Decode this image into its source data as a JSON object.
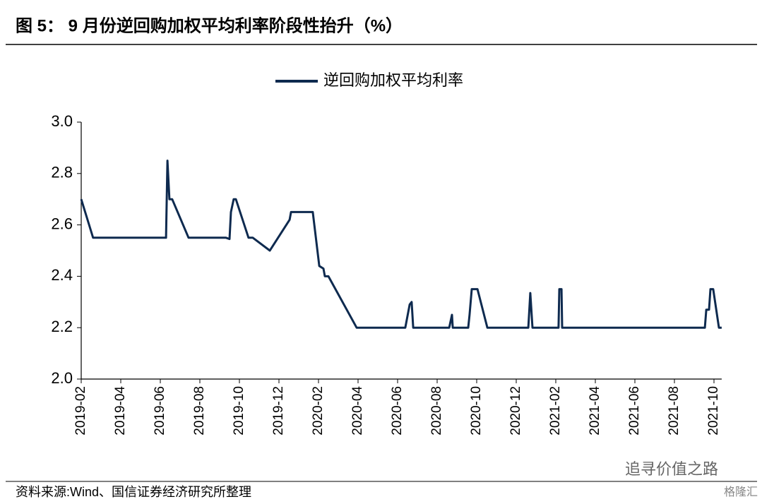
{
  "chart_data": {
    "type": "line",
    "title": "图 5： 9 月份逆回购加权平均利率阶段性抬升（%）",
    "source": "资料来源:Wind、国信证券经济研究所整理",
    "watermark": [
      "追寻价值之路",
      "格隆汇"
    ],
    "series": [
      {
        "name": "逆回购加权平均利率",
        "color": "#0e2a4f",
        "x": [
          0,
          0.6,
          4.29,
          4.36,
          4.46,
          4.6,
          5.43,
          7.32,
          7.5,
          7.57,
          7.71,
          7.82,
          8.46,
          8.68,
          9.54,
          10.54,
          10.61,
          11.71,
          12.04,
          12.25,
          12.32,
          12.5,
          13.93,
          16.39,
          16.61,
          16.71,
          16.79,
          18.61,
          18.75,
          18.79,
          19.57,
          19.64,
          19.75,
          20.04,
          20.54,
          22.61,
          22.71,
          22.82,
          24.14,
          24.18,
          24.29,
          24.32,
          31.54,
          31.61,
          31.75,
          31.82,
          31.96,
          32.25,
          32.39
        ],
        "values": [
          2.7,
          2.55,
          2.55,
          2.85,
          2.7,
          2.7,
          2.55,
          2.55,
          2.545,
          2.65,
          2.7,
          2.7,
          2.55,
          2.55,
          2.5,
          2.62,
          2.65,
          2.65,
          2.44,
          2.43,
          2.4,
          2.4,
          2.2,
          2.2,
          2.29,
          2.3,
          2.2,
          2.2,
          2.25,
          2.2,
          2.2,
          2.25,
          2.35,
          2.35,
          2.2,
          2.2,
          2.335,
          2.2,
          2.2,
          2.35,
          2.35,
          2.2,
          2.2,
          2.27,
          2.27,
          2.35,
          2.35,
          2.2,
          2.2
        ]
      }
    ],
    "xlim": [
      0,
      32.39
    ],
    "xticks": [
      {
        "value": 0,
        "label": "2019-02"
      },
      {
        "value": 2,
        "label": "2019-04"
      },
      {
        "value": 4,
        "label": "2019-06"
      },
      {
        "value": 6,
        "label": "2019-08"
      },
      {
        "value": 8,
        "label": "2019-10"
      },
      {
        "value": 10,
        "label": "2019-12"
      },
      {
        "value": 12,
        "label": "2020-02"
      },
      {
        "value": 14,
        "label": "2020-04"
      },
      {
        "value": 16,
        "label": "2020-06"
      },
      {
        "value": 18,
        "label": "2020-08"
      },
      {
        "value": 20,
        "label": "2020-10"
      },
      {
        "value": 22,
        "label": "2020-12"
      },
      {
        "value": 24,
        "label": "2021-02"
      },
      {
        "value": 26,
        "label": "2021-04"
      },
      {
        "value": 28,
        "label": "2021-06"
      },
      {
        "value": 30,
        "label": "2021-08"
      },
      {
        "value": 32,
        "label": "2021-10"
      }
    ],
    "ylim": [
      2.0,
      3.0
    ],
    "yticks": [
      {
        "value": 2.0,
        "label": "2.0"
      },
      2.2,
      2.4,
      2.6,
      2.8,
      {
        "value": 3.0,
        "label": "3.0"
      }
    ],
    "legend": "top"
  }
}
